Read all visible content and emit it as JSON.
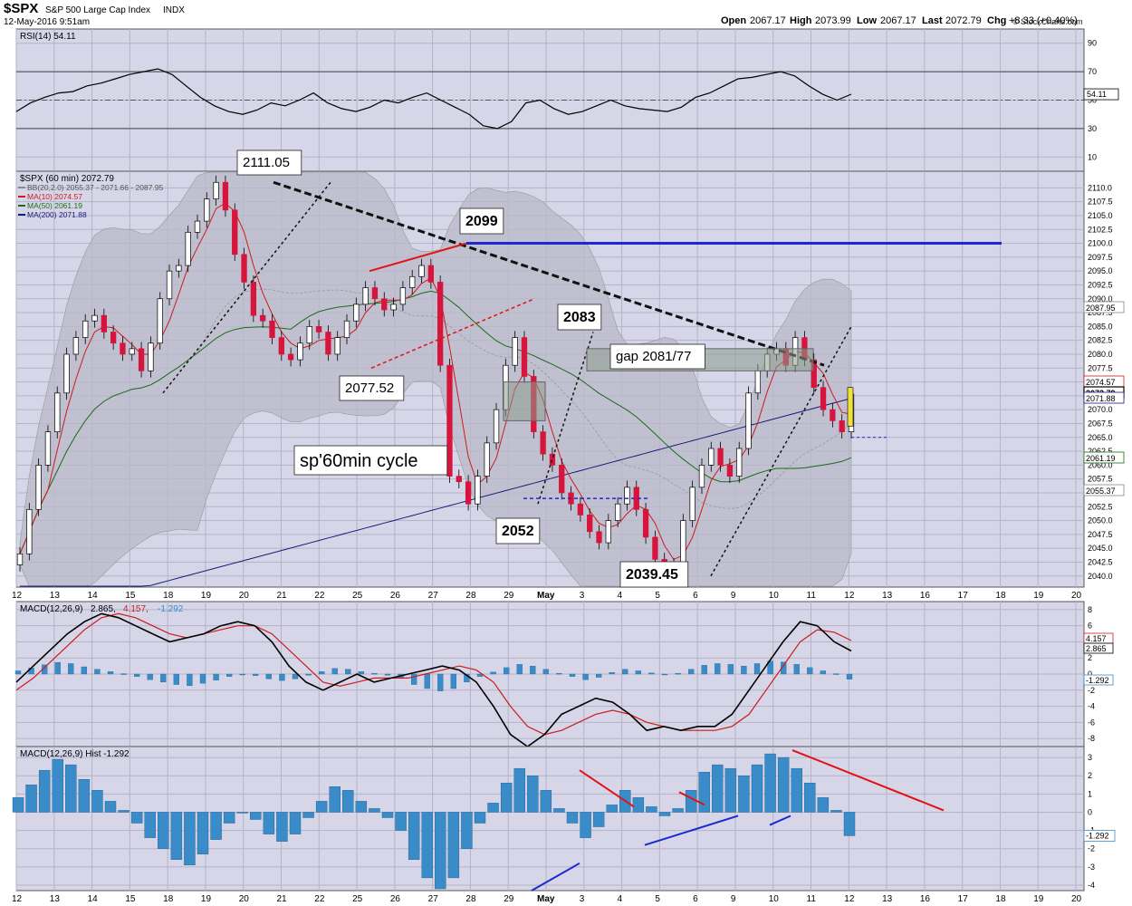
{
  "header": {
    "symbol": "$SPX",
    "name": "S&P 500 Large Cap Index",
    "exchange": "INDX",
    "timestamp": "12-May-2016 9:51am",
    "open_label": "Open",
    "open": "2067.17",
    "high_label": "High",
    "high": "2073.99",
    "low_label": "Low",
    "low": "2067.17",
    "last_label": "Last",
    "last": "2072.79",
    "chg_label": "Chg",
    "chg": "+8.33 (+0.40%)",
    "credit": "© StockCharts.com"
  },
  "colors": {
    "panel_bg": "#d6d6e8",
    "grid": "#b4b4c8",
    "up": "#ffffff",
    "down": "#d7143c",
    "bb_fill": "#b8b8c8",
    "ma10": "#cc1c1c",
    "ma50": "#1a6b1a",
    "ma200": "#1a1a7a",
    "hist": "#3a8cc8",
    "trend_black": "#111111",
    "resistance": "#1c28d2",
    "annot_red": "#e01414"
  },
  "x_axis": {
    "ticks": [
      "12",
      "13",
      "14",
      "15",
      "18",
      "19",
      "20",
      "21",
      "22",
      "25",
      "26",
      "27",
      "28",
      "29",
      "May",
      "3",
      "4",
      "5",
      "6",
      "9",
      "10",
      "11",
      "12",
      "13",
      "16",
      "17",
      "18",
      "19",
      "20"
    ]
  },
  "chart_data": [
    {
      "type": "line",
      "panel": "rsi",
      "label": "RSI(14) 54.11",
      "yticks": [
        90,
        70,
        50,
        30,
        10
      ],
      "ylim": [
        0,
        100
      ],
      "reference_lines": [
        70,
        30
      ],
      "center_line": 50,
      "series": [
        {
          "name": "RSI(14)",
          "values": [
            42,
            48,
            52,
            55,
            56,
            60,
            62,
            65,
            68,
            70,
            72,
            68,
            60,
            52,
            46,
            42,
            40,
            43,
            48,
            46,
            50,
            55,
            48,
            44,
            42,
            45,
            50,
            48,
            52,
            55,
            50,
            45,
            40,
            32,
            30,
            35,
            48,
            50,
            44,
            40,
            42,
            46,
            50,
            46,
            44,
            43,
            42,
            45,
            52,
            55,
            60,
            65,
            66,
            68,
            70,
            67,
            60,
            54,
            50,
            54.11
          ]
        }
      ],
      "current_value": "54.11"
    },
    {
      "type": "candlestick",
      "panel": "price",
      "label": "$SPX (60 min) 2072.79",
      "legend": [
        {
          "text": "BB(20,2.0) 2055.37 - 2071.66 - 2087.95"
        },
        {
          "text": "MA(10) 2074.57"
        },
        {
          "text": "MA(50) 2061.19"
        },
        {
          "text": "MA(200) 2071.88"
        }
      ],
      "ylim": [
        2038,
        2113
      ],
      "yticks": [
        "2110.0",
        "2107.5",
        "2105.0",
        "2102.5",
        "2100.0",
        "2097.5",
        "2095.0",
        "2092.5",
        "2090.0",
        "2087.5",
        "2085.0",
        "2082.5",
        "2080.0",
        "2077.5",
        "2075.0",
        "2072.5",
        "2070.0",
        "2067.5",
        "2065.0",
        "2062.5",
        "2060.0",
        "2057.5",
        "2055.0",
        "2052.5",
        "2050.0",
        "2047.5",
        "2045.0",
        "2042.5",
        "2040.0"
      ],
      "closes": [
        2044,
        2052,
        2060,
        2066,
        2073,
        2080,
        2083,
        2086,
        2087,
        2084,
        2082,
        2080,
        2081,
        2077,
        2082,
        2090,
        2095,
        2096,
        2102,
        2104,
        2108,
        2111,
        2106,
        2098,
        2093,
        2087,
        2086,
        2083,
        2080,
        2079,
        2082,
        2085,
        2084,
        2080,
        2083,
        2086,
        2089,
        2092,
        2090,
        2088,
        2089,
        2092,
        2094,
        2096,
        2093,
        2078,
        2058,
        2057,
        2053,
        2058,
        2064,
        2070,
        2078,
        2083,
        2076,
        2066,
        2062,
        2060,
        2055,
        2053,
        2051,
        2048,
        2046,
        2050,
        2053,
        2056,
        2052,
        2047,
        2043,
        2040,
        2042,
        2050,
        2056,
        2060,
        2063,
        2060,
        2058,
        2063,
        2073,
        2077,
        2080,
        2081,
        2078,
        2083,
        2079,
        2074,
        2070,
        2068,
        2066,
        2072.79
      ],
      "last_value": "2072.79",
      "right_labels": [
        "2087.95",
        "2074.57",
        "2072.79",
        "2071.88",
        "2061.19",
        "2055.37"
      ],
      "annotations": [
        "2111.05",
        "2099",
        "2083",
        "gap 2081/77",
        "2077.52",
        "2052",
        "2039.45",
        "sp'60min cycle"
      ],
      "resistance_level": 2100
    },
    {
      "type": "line",
      "panel": "macd",
      "label": "MACD(12,26,9) 2.865, 4.157, -1.292",
      "values_label": [
        "MACD(12,26,9)",
        "2.865",
        "4.157",
        "-1.292"
      ],
      "yticks": [
        8,
        6,
        4,
        2,
        0,
        -2,
        -4,
        -6,
        -8
      ],
      "ylim": [
        -9,
        9
      ],
      "series": [
        {
          "name": "MACD",
          "values": [
            -1,
            1,
            3,
            5,
            6.5,
            7.5,
            7,
            6,
            5,
            4,
            4.5,
            5,
            6,
            6.5,
            6,
            4,
            1,
            -1,
            -2,
            -1,
            0,
            -1,
            -0.5,
            0,
            0.5,
            1,
            0.5,
            -1,
            -4,
            -7.5,
            -9,
            -7.5,
            -5,
            -4,
            -3,
            -3.5,
            -5,
            -7,
            -6.5,
            -7,
            -6.5,
            -6.5,
            -5,
            -2,
            1,
            4,
            6.5,
            6,
            4,
            2.865
          ]
        },
        {
          "name": "Signal",
          "values": [
            -2,
            -0.5,
            1.5,
            3.5,
            5.5,
            7,
            7.5,
            7,
            6,
            5,
            4.5,
            5,
            5.5,
            6,
            6,
            5,
            3,
            1,
            -1,
            -1.5,
            -1,
            -0.5,
            -0.5,
            -0.5,
            0,
            0.5,
            1,
            0.5,
            -1,
            -4,
            -6.5,
            -7.5,
            -7,
            -6,
            -5,
            -4.5,
            -5,
            -6,
            -6.5,
            -7,
            -7,
            -7,
            -6.5,
            -5,
            -2,
            1,
            4,
            5.5,
            5.2,
            4.157
          ]
        }
      ],
      "current_values": [
        "4.157",
        "2.865",
        "-1.292"
      ]
    },
    {
      "type": "bar",
      "panel": "macd_hist",
      "label": "MACD(12,26,9) Hist -1.292",
      "yticks": [
        3,
        2,
        1,
        0,
        -1,
        -2,
        -3,
        -4
      ],
      "ylim": [
        -4.3,
        3.6
      ],
      "values": [
        0.8,
        1.5,
        2.3,
        2.9,
        2.6,
        1.8,
        1.2,
        0.6,
        0.1,
        -0.6,
        -1.4,
        -2,
        -2.6,
        -2.9,
        -2.3,
        -1.5,
        -0.6,
        0,
        -0.4,
        -1.2,
        -1.6,
        -1.2,
        -0.3,
        0.6,
        1.4,
        1.2,
        0.6,
        0.2,
        -0.3,
        -1,
        -2.6,
        -3.6,
        -4.2,
        -3.6,
        -2,
        -0.6,
        0.5,
        1.6,
        2.4,
        2,
        1.2,
        0.2,
        -0.6,
        -1.4,
        -0.8,
        0.4,
        1.2,
        0.8,
        0.3,
        -0.2,
        0.2,
        1.2,
        2.2,
        2.6,
        2.4,
        2,
        2.6,
        3.2,
        3,
        2.4,
        1.6,
        0.8,
        0.1,
        -1.292
      ],
      "current_value": "-1.292"
    }
  ]
}
